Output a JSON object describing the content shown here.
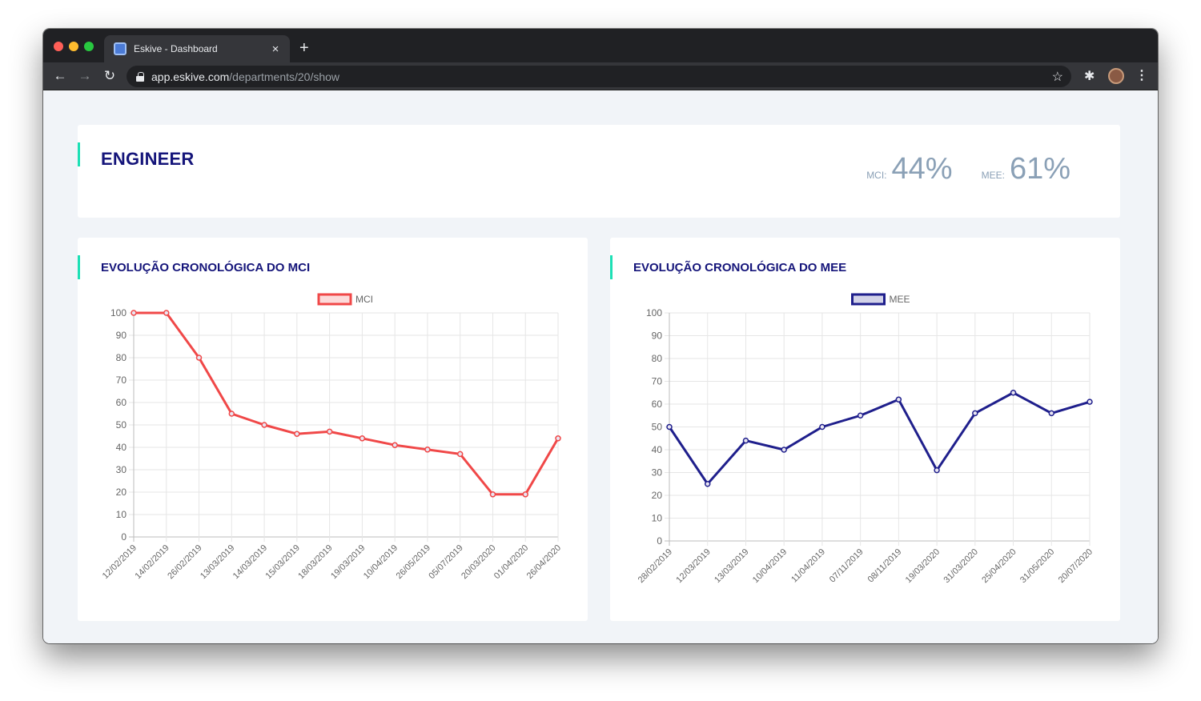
{
  "browser": {
    "tab_title": "Eskive - Dashboard",
    "tab_close": "×",
    "new_tab": "+",
    "url_host": "app.eskive.com",
    "url_path": "/departments/20/show",
    "icons": [
      "back-arrow-icon",
      "forward-arrow-icon",
      "reload-icon",
      "lock-icon",
      "star-icon",
      "extensions-icon",
      "avatar",
      "menu-icon"
    ]
  },
  "department": {
    "title": "ENGINEER",
    "mci_label": "MCI:",
    "mci_value": "44%",
    "mee_label": "MEE:",
    "mee_value": "61%",
    "accent_color": "#1de0b5"
  },
  "charts": {
    "mci_title": "EVOLUÇÃO CRONOLÓGICA DO MCI",
    "mee_title": "EVOLUÇÃO CRONOLÓGICA DO MEE"
  },
  "chart_data": [
    {
      "type": "line",
      "title": "EVOLUÇÃO CRONOLÓGICA DO MCI",
      "categories": [
        "12/02/2019",
        "14/02/2019",
        "26/02/2019",
        "13/03/2019",
        "14/03/2019",
        "15/03/2019",
        "18/03/2019",
        "19/03/2019",
        "10/04/2019",
        "26/05/2019",
        "05/07/2019",
        "20/03/2020",
        "01/04/2020",
        "26/04/2020"
      ],
      "series": [
        {
          "name": "MCI",
          "color": "#f04848",
          "values": [
            100,
            100,
            80,
            55,
            50,
            46,
            47,
            44,
            41,
            39,
            37,
            19,
            19,
            44
          ]
        }
      ],
      "ylim": [
        0,
        100
      ],
      "yticks": [
        0,
        10,
        20,
        30,
        40,
        50,
        60,
        70,
        80,
        90,
        100
      ],
      "grid": true,
      "legend": "top-center"
    },
    {
      "type": "line",
      "title": "EVOLUÇÃO CRONOLÓGICA DO MEE",
      "categories": [
        "28/02/2019",
        "12/03/2019",
        "13/03/2019",
        "10/04/2019",
        "11/04/2019",
        "07/11/2019",
        "08/11/2019",
        "19/03/2020",
        "31/03/2020",
        "25/04/2020",
        "31/05/2020",
        "20/07/2020"
      ],
      "series": [
        {
          "name": "MEE",
          "color": "#1f1f8c",
          "values": [
            50,
            25,
            44,
            40,
            50,
            55,
            62,
            31,
            56,
            65,
            56,
            61
          ]
        }
      ],
      "ylim": [
        0,
        100
      ],
      "yticks": [
        0,
        10,
        20,
        30,
        40,
        50,
        60,
        70,
        80,
        90,
        100
      ],
      "grid": true,
      "legend": "top-center"
    }
  ]
}
